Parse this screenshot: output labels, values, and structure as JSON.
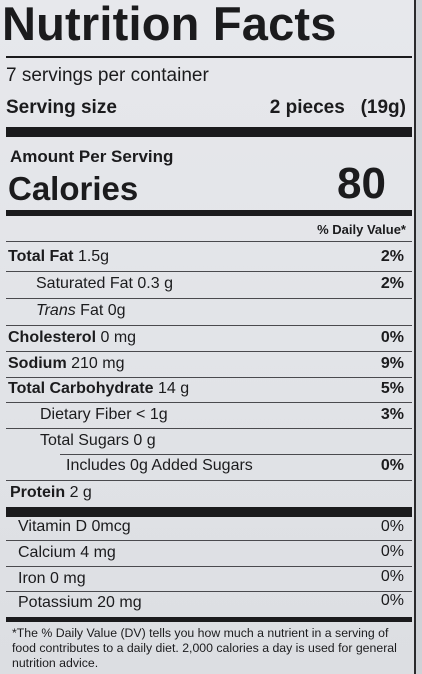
{
  "label": {
    "title": "Nutrition Facts",
    "servings": "7 servings per container",
    "serving_size_label": "Serving size",
    "serving_size_value": "2 pieces   (19g)",
    "amount_per_serving": "Amount Per Serving",
    "calories_label": "Calories",
    "calories_value": "80",
    "daily_value_header": "% Daily Value*",
    "nutrients": [
      {
        "name": "Total Fat",
        "amount": "1.5g",
        "dv": "2%"
      },
      {
        "name": "Saturated Fat",
        "amount": "0.3 g",
        "dv": "2%"
      },
      {
        "name": "Trans",
        "name_suffix": "Fat",
        "amount": "0g",
        "dv": ""
      },
      {
        "name": "Cholesterol",
        "amount": "0 mg",
        "dv": "0%"
      },
      {
        "name": "Sodium",
        "amount": "210 mg",
        "dv": "9%"
      },
      {
        "name": "Total Carbohydrate",
        "amount": "14 g",
        "dv": "5%"
      },
      {
        "name": "Dietary Fiber",
        "amount": "< 1g",
        "dv": "3%"
      },
      {
        "name": "Total Sugars",
        "amount": "0 g",
        "dv": ""
      },
      {
        "name": "Includes 0g Added Sugars",
        "amount": "",
        "dv": "0%"
      },
      {
        "name": "Protein",
        "amount": "2 g",
        "dv": ""
      }
    ],
    "vitamins": [
      {
        "name": "Vitamin D",
        "amount": "0mcg",
        "dv": "0%"
      },
      {
        "name": "Calcium",
        "amount": "4 mg",
        "dv": "0%"
      },
      {
        "name": "Iron",
        "amount": "0 mg",
        "dv": "0%"
      },
      {
        "name": "Potassium",
        "amount": "20 mg",
        "dv": "0%"
      }
    ],
    "footnote": "*The % Daily Value (DV) tells you how much a nutrient in a serving of food contributes to a daily diet. 2,000 calories a day is used for general nutrition advice."
  }
}
